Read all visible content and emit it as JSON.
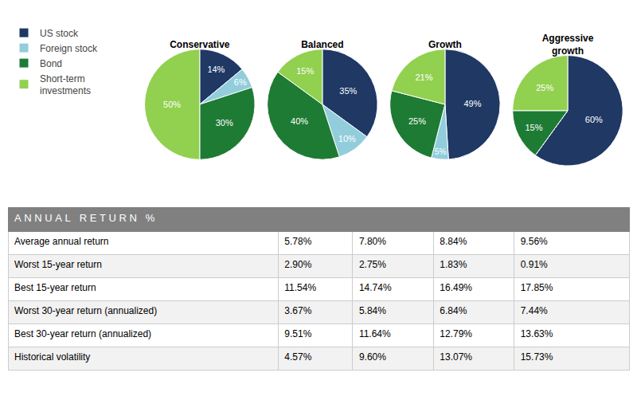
{
  "chart_data": [
    {
      "type": "pie",
      "title": "Conservative",
      "categories": [
        "US stock",
        "Foreign stock",
        "Bond",
        "Short-term\ninvestments"
      ],
      "values": [
        14,
        6,
        30,
        50
      ],
      "value_labels": [
        "14%",
        "6%",
        "30%",
        "50%"
      ],
      "colors": [
        "#1F3864",
        "#92CDDC",
        "#1E7B34",
        "#92D050"
      ],
      "data_labels": true,
      "legend": "upper left"
    },
    {
      "type": "pie",
      "title": "Balanced",
      "categories": [
        "US stock",
        "Foreign stock",
        "Bond",
        "Short-term\ninvestments"
      ],
      "values": [
        35,
        10,
        40,
        15
      ],
      "value_labels": [
        "35%",
        "10%",
        "40%",
        "15%"
      ],
      "colors": [
        "#1F3864",
        "#92CDDC",
        "#1E7B34",
        "#92D050"
      ],
      "data_labels": true
    },
    {
      "type": "pie",
      "title": "Growth",
      "categories": [
        "US stock",
        "Foreign stock",
        "Bond",
        "Short-term\ninvestments"
      ],
      "values": [
        49,
        5,
        25,
        21
      ],
      "value_labels": [
        "49%",
        "5%",
        "25%",
        "21%"
      ],
      "colors": [
        "#1F3864",
        "#92CDDC",
        "#1E7B34",
        "#92D050"
      ],
      "data_labels": true
    },
    {
      "type": "pie",
      "title": "Aggressive\ngrowth",
      "categories": [
        "US stock",
        "Foreign stock",
        "Bond",
        "Short-term\ninvestments"
      ],
      "values": [
        60,
        0,
        15,
        25
      ],
      "value_labels": [
        "60%",
        null,
        "15%",
        "25%"
      ],
      "colors": [
        "#1F3864",
        "#92CDDC",
        "#1E7B34",
        "#92D050"
      ],
      "data_labels": true
    },
    {
      "type": "table",
      "title": "A N N U A L   R E T U R N   %",
      "rows": [
        [
          "Average annual return",
          "5.78%",
          "7.80%",
          "8.84%",
          "9.56%"
        ],
        [
          "Worst 15-year return",
          "2.90%",
          "2.75%",
          "1.83%",
          "0.91%"
        ],
        [
          "Best 15-year return",
          "11.54%",
          "14.74%",
          "16.49%",
          "17.85%"
        ],
        [
          "Worst 30-year return (annualized)",
          "3.67%",
          "5.84%",
          "6.84%",
          "7.44%"
        ],
        [
          "Best 30-year return (annualized)",
          "9.51%",
          "11.64%",
          "12.79%",
          "13.63%"
        ],
        [
          "Historical volatility",
          "4.57%",
          "9.60%",
          "13.07%",
          "15.73%"
        ]
      ]
    }
  ]
}
